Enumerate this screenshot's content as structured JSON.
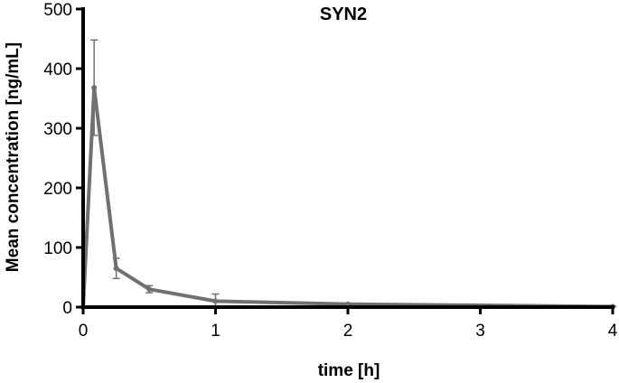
{
  "chart_data": {
    "type": "line",
    "title": "SYN2",
    "xlabel": "time [h]",
    "ylabel": "Mean concentration [ng/mL]",
    "xlim": [
      0,
      4
    ],
    "ylim": [
      0,
      500
    ],
    "xticks": [
      "0",
      "1",
      "2",
      "3",
      "4"
    ],
    "yticks": [
      "0",
      "100",
      "200",
      "300",
      "400",
      "500"
    ],
    "grid": false,
    "series": [
      {
        "color": "#707070",
        "x": [
          0,
          0.083,
          0.25,
          0.5,
          1,
          2,
          4
        ],
        "y": [
          0,
          368,
          65,
          30,
          10,
          5,
          1
        ],
        "error": [
          0,
          80,
          17,
          6,
          12,
          1,
          0.5
        ]
      }
    ]
  }
}
